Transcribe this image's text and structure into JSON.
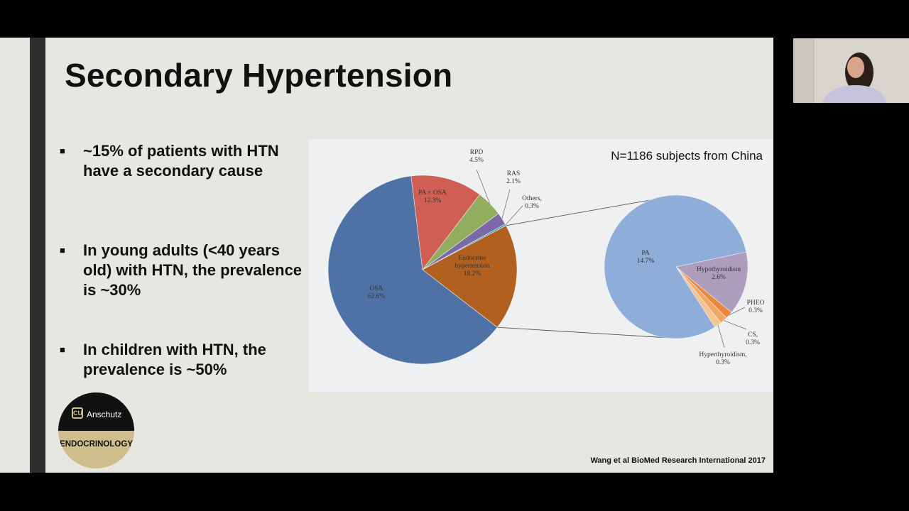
{
  "slide": {
    "title": "Secondary Hypertension",
    "bullets": [
      "~15% of patients with HTN have a secondary cause",
      "In young adults (<40 years old) with HTN, the prevalence is ~30%",
      "In children with HTN, the prevalence is ~50%"
    ],
    "bullet_marker": "■",
    "logo": {
      "name": "Anschutz",
      "dept": "ENDOCRINOLOGY"
    },
    "citation": "Wang et al BioMed Research International 2017"
  },
  "chart_data": [
    {
      "type": "pie",
      "annotation": "N=1186 subjects from China",
      "slices": [
        {
          "label": "OSA",
          "value": 62.6,
          "value_text": "62.6%",
          "color": "#4f72a6"
        },
        {
          "label": "PA + OSA",
          "value": 12.3,
          "value_text": "12.3%",
          "color": "#cf5f53"
        },
        {
          "label": "RPD",
          "value": 4.5,
          "value_text": "4.5%",
          "color": "#93ad5e"
        },
        {
          "label": "RAS",
          "value": 2.1,
          "value_text": "2.1%",
          "color": "#7a69a6"
        },
        {
          "label": "Others,",
          "value": 0.3,
          "value_text": "0.3%",
          "color": "#3f9cbd"
        },
        {
          "label": "Endocrine hypertension",
          "label_lines": [
            "Endocrine",
            "hypertension"
          ],
          "value": 18.2,
          "value_text": "18.2%",
          "color": "#b2601f"
        }
      ]
    },
    {
      "type": "pie",
      "title": "",
      "slices": [
        {
          "label": "PA",
          "value": 14.7,
          "value_text": "14.7%",
          "color": "#8eadd8"
        },
        {
          "label": "Hypothyroidism",
          "value": 2.6,
          "value_text": "2.6%",
          "color": "#ae9dbd"
        },
        {
          "label": "PHEO",
          "value": 0.3,
          "value_text": "0.3%",
          "color": "#e9873a"
        },
        {
          "label": "CS,",
          "value": 0.3,
          "value_text": "0.3%",
          "color": "#f2a565"
        },
        {
          "label": "Hyperthyroidism,",
          "value": 0.3,
          "value_text": "0.3%",
          "color": "#f6c48f"
        }
      ]
    }
  ],
  "colors": {
    "slide_bg": "#e8e6e1",
    "chart_bg": "#eff0f2",
    "left_bar": "#2e2e2e",
    "gold": "#cfbd8c"
  },
  "icons": {
    "logo": "cu-logo-icon"
  }
}
